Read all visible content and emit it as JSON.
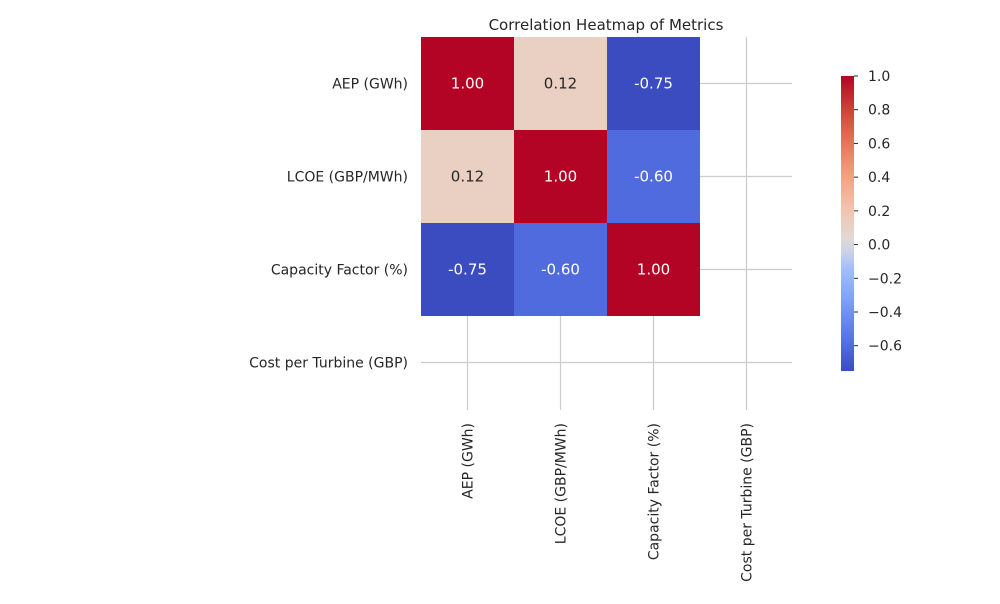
{
  "chart_data": {
    "type": "heatmap",
    "title": "Correlation Heatmap of Metrics",
    "xlabel": "",
    "ylabel": "",
    "x_labels": [
      "AEP (GWh)",
      "LCOE (GBP/MWh)",
      "Capacity Factor (%)",
      "Cost per Turbine (GBP)"
    ],
    "y_labels": [
      "AEP (GWh)",
      "LCOE (GBP/MWh)",
      "Capacity Factor (%)",
      "Cost per Turbine (GBP)"
    ],
    "matrix": [
      [
        1.0,
        0.12,
        -0.75,
        null
      ],
      [
        0.12,
        1.0,
        -0.6,
        null
      ],
      [
        -0.75,
        -0.6,
        1.0,
        null
      ],
      [
        null,
        null,
        null,
        null
      ]
    ],
    "annotation_format": "0.00",
    "colormap": "coolwarm",
    "vmin": -0.75,
    "vmax": 1.0,
    "colorbar": {
      "ticks": [
        "1.0",
        "0.8",
        "0.6",
        "0.4",
        "0.2",
        "0.0",
        "−0.2",
        "−0.4",
        "−0.6"
      ],
      "tick_values": [
        1.0,
        0.8,
        0.6,
        0.4,
        0.2,
        0.0,
        -0.2,
        -0.4,
        -0.6
      ]
    },
    "grid": true,
    "colors": {
      "grid": "#cccccc",
      "text": "#262626",
      "annotation_light": "#ffffff",
      "annotation_dark": "#262626"
    }
  }
}
